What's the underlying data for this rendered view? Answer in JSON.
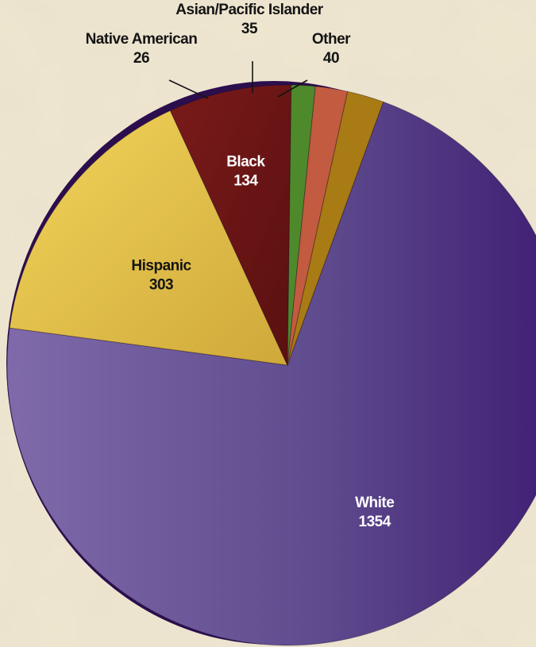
{
  "chart_data": {
    "type": "pie",
    "title": "",
    "slices": [
      {
        "label": "White",
        "value": 1354,
        "color": "#6a5797"
      },
      {
        "label": "Hispanic",
        "value": 303,
        "color": "#e7c64a"
      },
      {
        "label": "Black",
        "value": 134,
        "color": "#6d1616"
      },
      {
        "label": "Native American",
        "value": 26,
        "color": "#4e8a2c"
      },
      {
        "label": "Asian/Pacific Islander",
        "value": 35,
        "color": "#c25b40"
      },
      {
        "label": "Other",
        "value": 40,
        "color": "#a87b14"
      }
    ],
    "background_color": "#efe6cf"
  }
}
